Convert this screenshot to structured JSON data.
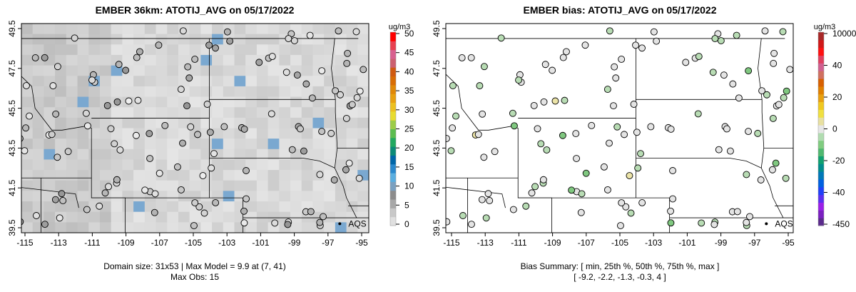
{
  "panels": [
    {
      "title": "EMBER 36km: ATOTIJ_AVG on 05/17/2022",
      "caption_lines": [
        "Domain size: 31x53 | Max Model = 9.9 at (7, 41)",
        "Max Obs: 15"
      ],
      "colorbar": {
        "units": "ug/m3",
        "labels": [
          "50",
          "45",
          "40",
          "35",
          "30",
          "25",
          "20",
          "15",
          "10",
          "5",
          "0"
        ],
        "colors": [
          "#e0e0e0",
          "#c8c8c8",
          "#a8a8a8",
          "#8c8c8c",
          "#7aa0c0",
          "#5aaee0",
          "#2a88cc",
          "#0066a8",
          "#0c8a78",
          "#22a860",
          "#5cbc50",
          "#9ccc48",
          "#e8dc30",
          "#ecc020",
          "#e8a010",
          "#e08808",
          "#d86c04",
          "#d05a10",
          "#cc6070",
          "#d86090",
          "#e84050",
          "#ff0000"
        ]
      }
    },
    {
      "title": "EMBER bias: ATOTIJ_AVG on 05/17/2022",
      "caption_lines": [
        "Bias Summary: [ min, 25th %, 50th %, 75th %, max ]",
        "[ -9.2,  -2.2,  -1.3,  -0.3,  4 ]"
      ],
      "colorbar": {
        "units": "ug/m3",
        "labels": [
          "10000",
          "40",
          "20",
          "0",
          "-20",
          "-40",
          "-450"
        ],
        "colors": [
          "#5a2a8c",
          "#7a20c0",
          "#9a20e8",
          "#5a30f0",
          "#2040f8",
          "#0060e0",
          "#0078b8",
          "#008c8c",
          "#10a070",
          "#50b870",
          "#80cc80",
          "#b0dcb0",
          "#e6e6e6",
          "#e8e0a0",
          "#f0e040",
          "#f0c820",
          "#e8a010",
          "#e08000",
          "#d86000",
          "#d07060",
          "#d06090",
          "#e04060",
          "#ff1010",
          "#d01818",
          "#a82828"
        ]
      }
    }
  ],
  "x_ticks": [
    "-115",
    "-113",
    "-111",
    "-109",
    "-107",
    "-105",
    "-103",
    "-101",
    "-99",
    "-97",
    "-95"
  ],
  "y_ticks": [
    "39.5",
    "41.5",
    "43.5",
    "45.5",
    "47.5",
    "49.5"
  ],
  "network_label": "AQS"
}
